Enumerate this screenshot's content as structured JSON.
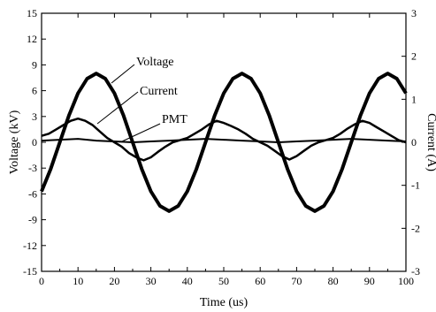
{
  "chart_data": {
    "type": "line",
    "title": "",
    "xlabel": "Time (us)",
    "ylabel": "Voltage (kV)",
    "y2label": "Current (A)",
    "xlim": [
      0,
      100
    ],
    "ylim": [
      -15,
      15
    ],
    "y2lim": [
      -3,
      3
    ],
    "xticks": [
      0,
      10,
      20,
      30,
      40,
      50,
      60,
      70,
      80,
      90,
      100
    ],
    "yticks": [
      -15,
      -12,
      -9,
      -6,
      -3,
      0,
      3,
      6,
      9,
      12,
      15
    ],
    "y2ticks": [
      -3,
      -2,
      -1,
      0,
      1,
      2,
      3
    ],
    "grid": false,
    "legend": "none",
    "annotations": [
      {
        "text": "Voltage",
        "points_to_series": "Voltage"
      },
      {
        "text": "Current",
        "points_to_series": "Current"
      },
      {
        "text": "PMT",
        "points_to_series": "PMT"
      }
    ],
    "series": [
      {
        "name": "Voltage",
        "axis": "left",
        "x": [
          0,
          2.5,
          5,
          7.5,
          10,
          12.5,
          15,
          17.5,
          20,
          22.5,
          25,
          27.5,
          30,
          32.5,
          35,
          37.5,
          40,
          42.5,
          45,
          47.5,
          50,
          52.5,
          55,
          57.5,
          60,
          62.5,
          65,
          67.5,
          70,
          72.5,
          75,
          77.5,
          80,
          82.5,
          85,
          87.5,
          90,
          92.5,
          95,
          97.5,
          100
        ],
        "values": [
          -5.7,
          -3.1,
          0.0,
          3.1,
          5.7,
          7.4,
          8.0,
          7.4,
          5.7,
          3.1,
          0.0,
          -3.1,
          -5.7,
          -7.4,
          -8.0,
          -7.4,
          -5.7,
          -3.1,
          0.0,
          3.1,
          5.7,
          7.4,
          8.0,
          7.4,
          5.7,
          3.1,
          0.0,
          -3.1,
          -5.7,
          -7.4,
          -8.0,
          -7.4,
          -5.7,
          -3.1,
          0.0,
          3.1,
          5.7,
          7.4,
          8.0,
          7.4,
          5.7
        ]
      },
      {
        "name": "Current",
        "axis": "right",
        "x": [
          0,
          2,
          4,
          6,
          8,
          10,
          12,
          14,
          16,
          18,
          20,
          22,
          24,
          26,
          28,
          30,
          32,
          34,
          36,
          38,
          40,
          42,
          44,
          46,
          48,
          50,
          52,
          54,
          56,
          58,
          60,
          62,
          64,
          66,
          68,
          70,
          72,
          74,
          76,
          78,
          80,
          82,
          84,
          86,
          88,
          90,
          92,
          94,
          96,
          98,
          100
        ],
        "values": [
          0.15,
          0.2,
          0.3,
          0.4,
          0.5,
          0.55,
          0.5,
          0.4,
          0.25,
          0.1,
          0.0,
          -0.1,
          -0.25,
          -0.35,
          -0.42,
          -0.35,
          -0.22,
          -0.1,
          0.0,
          0.05,
          0.1,
          0.2,
          0.3,
          0.42,
          0.5,
          0.45,
          0.38,
          0.3,
          0.2,
          0.08,
          0.0,
          -0.08,
          -0.2,
          -0.32,
          -0.4,
          -0.32,
          -0.2,
          -0.08,
          0.0,
          0.05,
          0.1,
          0.2,
          0.32,
          0.42,
          0.5,
          0.45,
          0.35,
          0.25,
          0.15,
          0.05,
          0.0
        ]
      },
      {
        "name": "PMT",
        "axis": "left",
        "x": [
          0,
          5,
          10,
          15,
          20,
          25,
          30,
          35,
          40,
          45,
          50,
          55,
          60,
          65,
          70,
          75,
          80,
          85,
          90,
          95,
          100
        ],
        "values": [
          0.2,
          0.3,
          0.4,
          0.2,
          0.1,
          0.0,
          0.1,
          0.2,
          0.3,
          0.4,
          0.3,
          0.2,
          0.1,
          0.0,
          0.1,
          0.2,
          0.3,
          0.4,
          0.3,
          0.2,
          0.1
        ]
      }
    ]
  }
}
